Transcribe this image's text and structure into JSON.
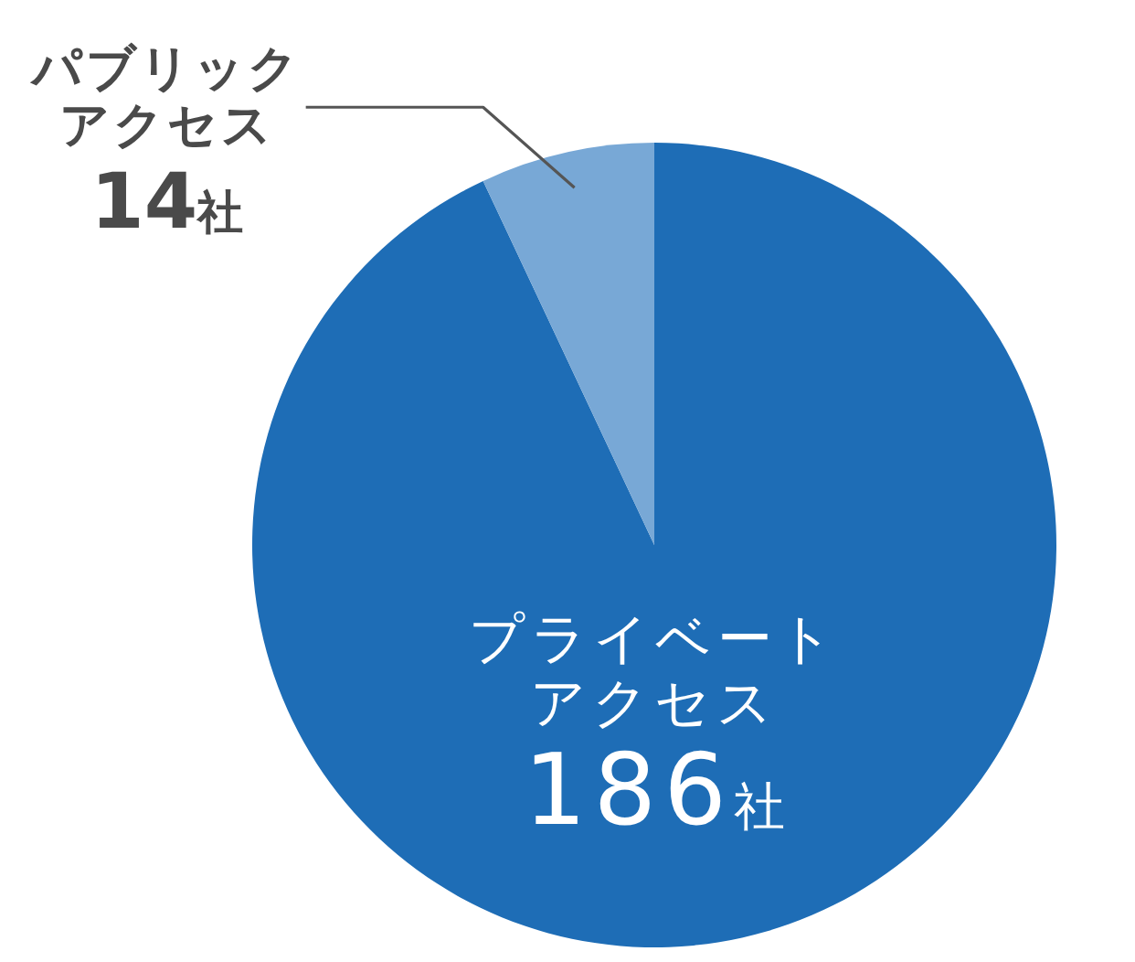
{
  "chart_data": {
    "type": "pie",
    "categories": [
      "プライベートアクセス",
      "パブリックアクセス"
    ],
    "values": [
      186,
      14
    ],
    "value_labels": [
      "186社",
      "14社"
    ],
    "colors": [
      "#1e6db6",
      "#78a8d6"
    ]
  }
}
